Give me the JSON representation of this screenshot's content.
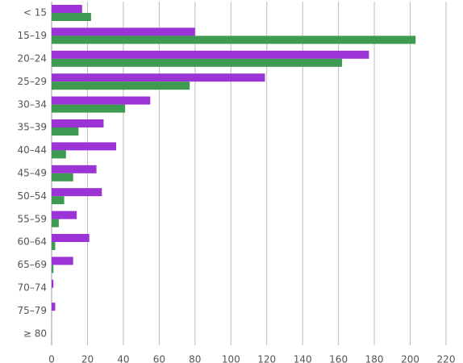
{
  "chart_data": {
    "type": "bar",
    "orientation": "horizontal",
    "categories": [
      "< 15",
      "15–19",
      "20–24",
      "25–29",
      "30–34",
      "35–39",
      "40–44",
      "45–49",
      "50–54",
      "55–59",
      "60–64",
      "65–69",
      "70–74",
      "75–79",
      "≥ 80"
    ],
    "series": [
      {
        "color": "#9c33d6",
        "values": [
          17,
          80,
          177,
          119,
          55,
          29,
          36,
          25,
          28,
          14,
          21,
          12,
          1,
          2,
          0
        ]
      },
      {
        "color": "#3d9a50",
        "values": [
          22,
          203,
          162,
          77,
          41,
          15,
          8,
          12,
          7,
          4,
          2,
          1,
          0,
          0,
          0
        ]
      }
    ],
    "xlim": [
      0,
      220
    ],
    "xticks": [
      0,
      20,
      40,
      60,
      80,
      100,
      120,
      140,
      160,
      180,
      200,
      220
    ],
    "grid": true
  }
}
